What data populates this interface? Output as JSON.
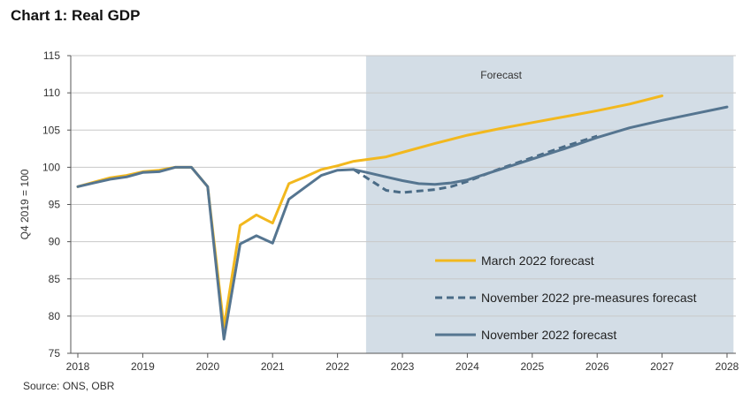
{
  "header": {
    "title": "Chart 1: Real GDP"
  },
  "footer": {
    "source": "Source: ONS, OBR"
  },
  "chart_data": {
    "type": "line",
    "title": "Chart 1: Real GDP",
    "xlabel": "",
    "ylabel": "Q4 2019 = 100",
    "xlim": [
      2018,
      2028
    ],
    "ylim": [
      75,
      115
    ],
    "yticks": [
      75,
      80,
      85,
      90,
      95,
      100,
      105,
      110,
      115
    ],
    "xticks": [
      "2018",
      "2019",
      "2020",
      "2021",
      "2022",
      "2023",
      "2024",
      "2025",
      "2026",
      "2027",
      "2028"
    ],
    "grid": true,
    "forecast_region": {
      "start": 2022.44,
      "end": 2028.1,
      "label": "Forecast",
      "color": "#d3dde6"
    },
    "legend_position": "bottom-right",
    "series": [
      {
        "name": "March 2022 forecast",
        "color": "#f2b81e",
        "style": "solid",
        "x": [
          2018.0,
          2018.25,
          2018.5,
          2018.75,
          2019.0,
          2019.25,
          2019.5,
          2019.75,
          2020.0,
          2020.25,
          2020.5,
          2020.75,
          2021.0,
          2021.25,
          2021.5,
          2021.75,
          2022.0,
          2022.25,
          2022.5,
          2022.75,
          2023.0,
          2023.5,
          2024.0,
          2024.5,
          2025.0,
          2025.5,
          2026.0,
          2026.5,
          2027.0
        ],
        "y": [
          97.4,
          98.0,
          98.6,
          98.9,
          99.4,
          99.6,
          100.0,
          100.0,
          97.4,
          78.5,
          92.2,
          93.6,
          92.5,
          97.8,
          98.7,
          99.7,
          100.2,
          100.8,
          101.1,
          101.4,
          102.0,
          103.2,
          104.3,
          105.2,
          106.0,
          106.8,
          107.6,
          108.5,
          109.6
        ]
      },
      {
        "name": "November 2022 pre-measures forecast",
        "color": "#4a6b86",
        "style": "dashed",
        "x": [
          2022.25,
          2022.5,
          2022.75,
          2023.0,
          2023.25,
          2023.5,
          2023.75,
          2024.0,
          2024.5,
          2025.0,
          2025.5,
          2026.0
        ],
        "y": [
          99.7,
          98.3,
          96.9,
          96.6,
          96.8,
          97.0,
          97.4,
          98.1,
          99.8,
          101.3,
          102.8,
          104.2
        ]
      },
      {
        "name": "November 2022 forecast",
        "color": "#557590",
        "style": "solid",
        "x": [
          2018.0,
          2018.25,
          2018.5,
          2018.75,
          2019.0,
          2019.25,
          2019.5,
          2019.75,
          2020.0,
          2020.25,
          2020.5,
          2020.75,
          2021.0,
          2021.25,
          2021.5,
          2021.75,
          2022.0,
          2022.25,
          2022.5,
          2022.75,
          2023.0,
          2023.25,
          2023.5,
          2023.75,
          2024.0,
          2024.5,
          2025.0,
          2025.5,
          2026.0,
          2026.5,
          2027.0,
          2027.5,
          2028.0
        ],
        "y": [
          97.4,
          97.9,
          98.4,
          98.7,
          99.3,
          99.4,
          100.0,
          100.0,
          97.4,
          76.9,
          89.7,
          90.8,
          89.8,
          95.7,
          97.3,
          98.9,
          99.6,
          99.7,
          99.2,
          98.7,
          98.2,
          97.8,
          97.7,
          97.9,
          98.3,
          99.7,
          101.1,
          102.5,
          104.0,
          105.3,
          106.3,
          107.2,
          108.1
        ]
      }
    ]
  }
}
